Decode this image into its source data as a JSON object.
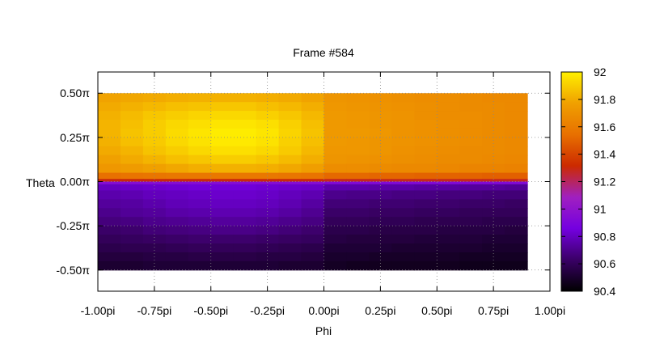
{
  "chart_data": {
    "type": "heatmap",
    "title": "Frame #584",
    "xlabel": "Phi",
    "ylabel": "Theta",
    "xlim": [
      -1.0,
      1.0
    ],
    "ylim": [
      -0.62,
      0.62
    ],
    "x_ticks": [
      {
        "value": -1.0,
        "label": "-1.00pi"
      },
      {
        "value": -0.75,
        "label": "-0.75pi"
      },
      {
        "value": -0.5,
        "label": "-0.50pi"
      },
      {
        "value": -0.25,
        "label": "-0.25pi"
      },
      {
        "value": 0.0,
        "label": "0.00pi"
      },
      {
        "value": 0.25,
        "label": "0.25pi"
      },
      {
        "value": 0.5,
        "label": "0.50pi"
      },
      {
        "value": 0.75,
        "label": "0.75pi"
      },
      {
        "value": 1.0,
        "label": "1.00pi"
      }
    ],
    "y_ticks": [
      {
        "value": 0.5,
        "label": "0.50π"
      },
      {
        "value": 0.25,
        "label": "0.25π"
      },
      {
        "value": 0.0,
        "label": "0.00π"
      },
      {
        "value": -0.25,
        "label": "-0.25π"
      },
      {
        "value": -0.5,
        "label": "-0.50π"
      }
    ],
    "grid": true,
    "data_extent": {
      "phi": [
        -1.0,
        0.9
      ],
      "theta": [
        -0.5,
        0.5
      ]
    },
    "colorbar": {
      "range": [
        90.4,
        92.0
      ],
      "ticks": [
        "92",
        "91.8",
        "91.6",
        "91.4",
        "91.2",
        "91",
        "90.8",
        "90.6",
        "90.4"
      ],
      "palette": [
        "#000000",
        "#3a0066",
        "#7400e0",
        "#a020c0",
        "#cc2a00",
        "#e87000",
        "#f0a000",
        "#fff000"
      ]
    },
    "grid_data": {
      "phi": [
        -0.95,
        -0.85,
        -0.75,
        -0.65,
        -0.55,
        -0.45,
        -0.35,
        -0.25,
        -0.15,
        -0.05,
        0.05,
        0.15,
        0.25,
        0.35,
        0.45,
        0.55,
        0.65,
        0.75,
        0.85
      ],
      "theta": [
        0.475,
        0.425,
        0.375,
        0.325,
        0.275,
        0.225,
        0.175,
        0.125,
        0.075,
        0.025,
        0.005,
        -0.005,
        -0.025,
        -0.075,
        -0.125,
        -0.175,
        -0.225,
        -0.275,
        -0.325,
        -0.375,
        -0.425,
        -0.475
      ],
      "values": [
        [
          91.78,
          91.79,
          91.8,
          91.81,
          91.82,
          91.82,
          91.82,
          91.81,
          91.8,
          91.78,
          91.72,
          91.71,
          91.7,
          91.69,
          91.68,
          91.68,
          91.67,
          91.66,
          91.66
        ],
        [
          91.8,
          91.82,
          91.84,
          91.86,
          91.87,
          91.88,
          91.88,
          91.86,
          91.84,
          91.81,
          91.73,
          91.72,
          91.71,
          91.7,
          91.69,
          91.68,
          91.67,
          91.67,
          91.66
        ],
        [
          91.82,
          91.85,
          91.88,
          91.9,
          91.92,
          91.93,
          91.93,
          91.91,
          91.88,
          91.84,
          91.74,
          91.73,
          91.72,
          91.71,
          91.69,
          91.68,
          91.68,
          91.67,
          91.66
        ],
        [
          91.83,
          91.86,
          91.9,
          91.93,
          91.95,
          91.97,
          91.97,
          91.95,
          91.91,
          91.86,
          91.74,
          91.73,
          91.72,
          91.71,
          91.7,
          91.69,
          91.68,
          91.67,
          91.66
        ],
        [
          91.83,
          91.87,
          91.9,
          91.94,
          91.97,
          91.99,
          91.99,
          91.97,
          91.92,
          91.87,
          91.74,
          91.74,
          91.73,
          91.71,
          91.7,
          91.69,
          91.68,
          91.67,
          91.66
        ],
        [
          91.82,
          91.86,
          91.89,
          91.93,
          91.96,
          91.98,
          91.98,
          91.96,
          91.91,
          91.86,
          91.74,
          91.73,
          91.72,
          91.71,
          91.7,
          91.69,
          91.68,
          91.67,
          91.66
        ],
        [
          91.8,
          91.83,
          91.87,
          91.9,
          91.93,
          91.95,
          91.95,
          91.93,
          91.89,
          91.84,
          91.73,
          91.73,
          91.72,
          91.7,
          91.69,
          91.68,
          91.67,
          91.67,
          91.66
        ],
        [
          91.77,
          91.8,
          91.83,
          91.86,
          91.88,
          91.9,
          91.9,
          91.88,
          91.85,
          91.81,
          91.72,
          91.71,
          91.7,
          91.69,
          91.68,
          91.67,
          91.67,
          91.66,
          91.65
        ],
        [
          91.73,
          91.75,
          91.77,
          91.79,
          91.81,
          91.82,
          91.82,
          91.81,
          91.79,
          91.76,
          91.68,
          91.68,
          91.67,
          91.66,
          91.66,
          91.65,
          91.64,
          91.64,
          91.63
        ],
        [
          91.55,
          91.56,
          91.57,
          91.58,
          91.58,
          91.58,
          91.58,
          91.58,
          91.57,
          91.56,
          91.52,
          91.52,
          91.51,
          91.51,
          91.5,
          91.5,
          91.5,
          91.49,
          91.49
        ],
        [
          91.3,
          91.3,
          91.3,
          91.3,
          91.3,
          91.3,
          91.3,
          91.3,
          91.3,
          91.3,
          91.28,
          91.28,
          91.28,
          91.28,
          91.28,
          91.28,
          91.28,
          91.28,
          91.28
        ],
        [
          90.95,
          90.95,
          90.95,
          90.95,
          90.95,
          90.95,
          90.95,
          90.95,
          90.95,
          90.95,
          90.93,
          90.93,
          90.93,
          90.93,
          90.93,
          90.93,
          90.93,
          90.93,
          90.93
        ],
        [
          90.8,
          90.81,
          90.82,
          90.83,
          90.84,
          90.84,
          90.84,
          90.83,
          90.82,
          90.81,
          90.76,
          90.76,
          90.75,
          90.75,
          90.74,
          90.74,
          90.73,
          90.73,
          90.72
        ],
        [
          90.76,
          90.77,
          90.79,
          90.8,
          90.81,
          90.82,
          90.82,
          90.81,
          90.79,
          90.77,
          90.7,
          90.69,
          90.69,
          90.68,
          90.68,
          90.67,
          90.67,
          90.66,
          90.66
        ],
        [
          90.73,
          90.74,
          90.76,
          90.78,
          90.79,
          90.8,
          90.8,
          90.79,
          90.77,
          90.74,
          90.66,
          90.66,
          90.65,
          90.65,
          90.64,
          90.64,
          90.63,
          90.63,
          90.62
        ],
        [
          90.7,
          90.72,
          90.73,
          90.75,
          90.76,
          90.77,
          90.77,
          90.76,
          90.74,
          90.71,
          90.63,
          90.63,
          90.62,
          90.62,
          90.61,
          90.61,
          90.6,
          90.6,
          90.6
        ],
        [
          90.67,
          90.68,
          90.7,
          90.71,
          90.72,
          90.73,
          90.73,
          90.72,
          90.7,
          90.68,
          90.6,
          90.6,
          90.59,
          90.59,
          90.58,
          90.58,
          90.58,
          90.57,
          90.57
        ],
        [
          90.63,
          90.64,
          90.66,
          90.67,
          90.68,
          90.69,
          90.69,
          90.68,
          90.66,
          90.64,
          90.57,
          90.57,
          90.56,
          90.56,
          90.56,
          90.55,
          90.55,
          90.55,
          90.54
        ],
        [
          90.6,
          90.61,
          90.62,
          90.63,
          90.64,
          90.64,
          90.64,
          90.63,
          90.62,
          90.61,
          90.55,
          90.54,
          90.54,
          90.54,
          90.53,
          90.53,
          90.53,
          90.52,
          90.52
        ],
        [
          90.57,
          90.58,
          90.58,
          90.59,
          90.6,
          90.6,
          90.6,
          90.59,
          90.58,
          90.57,
          90.52,
          90.52,
          90.52,
          90.51,
          90.51,
          90.51,
          90.51,
          90.5,
          90.5
        ],
        [
          90.54,
          90.54,
          90.55,
          90.55,
          90.56,
          90.56,
          90.56,
          90.55,
          90.55,
          90.54,
          90.5,
          90.5,
          90.49,
          90.49,
          90.49,
          90.49,
          90.48,
          90.48,
          90.48
        ],
        [
          90.51,
          90.51,
          90.52,
          90.52,
          90.52,
          90.52,
          90.52,
          90.52,
          90.51,
          90.51,
          90.48,
          90.47,
          90.47,
          90.47,
          90.47,
          90.47,
          90.46,
          90.46,
          90.46
        ]
      ]
    }
  }
}
